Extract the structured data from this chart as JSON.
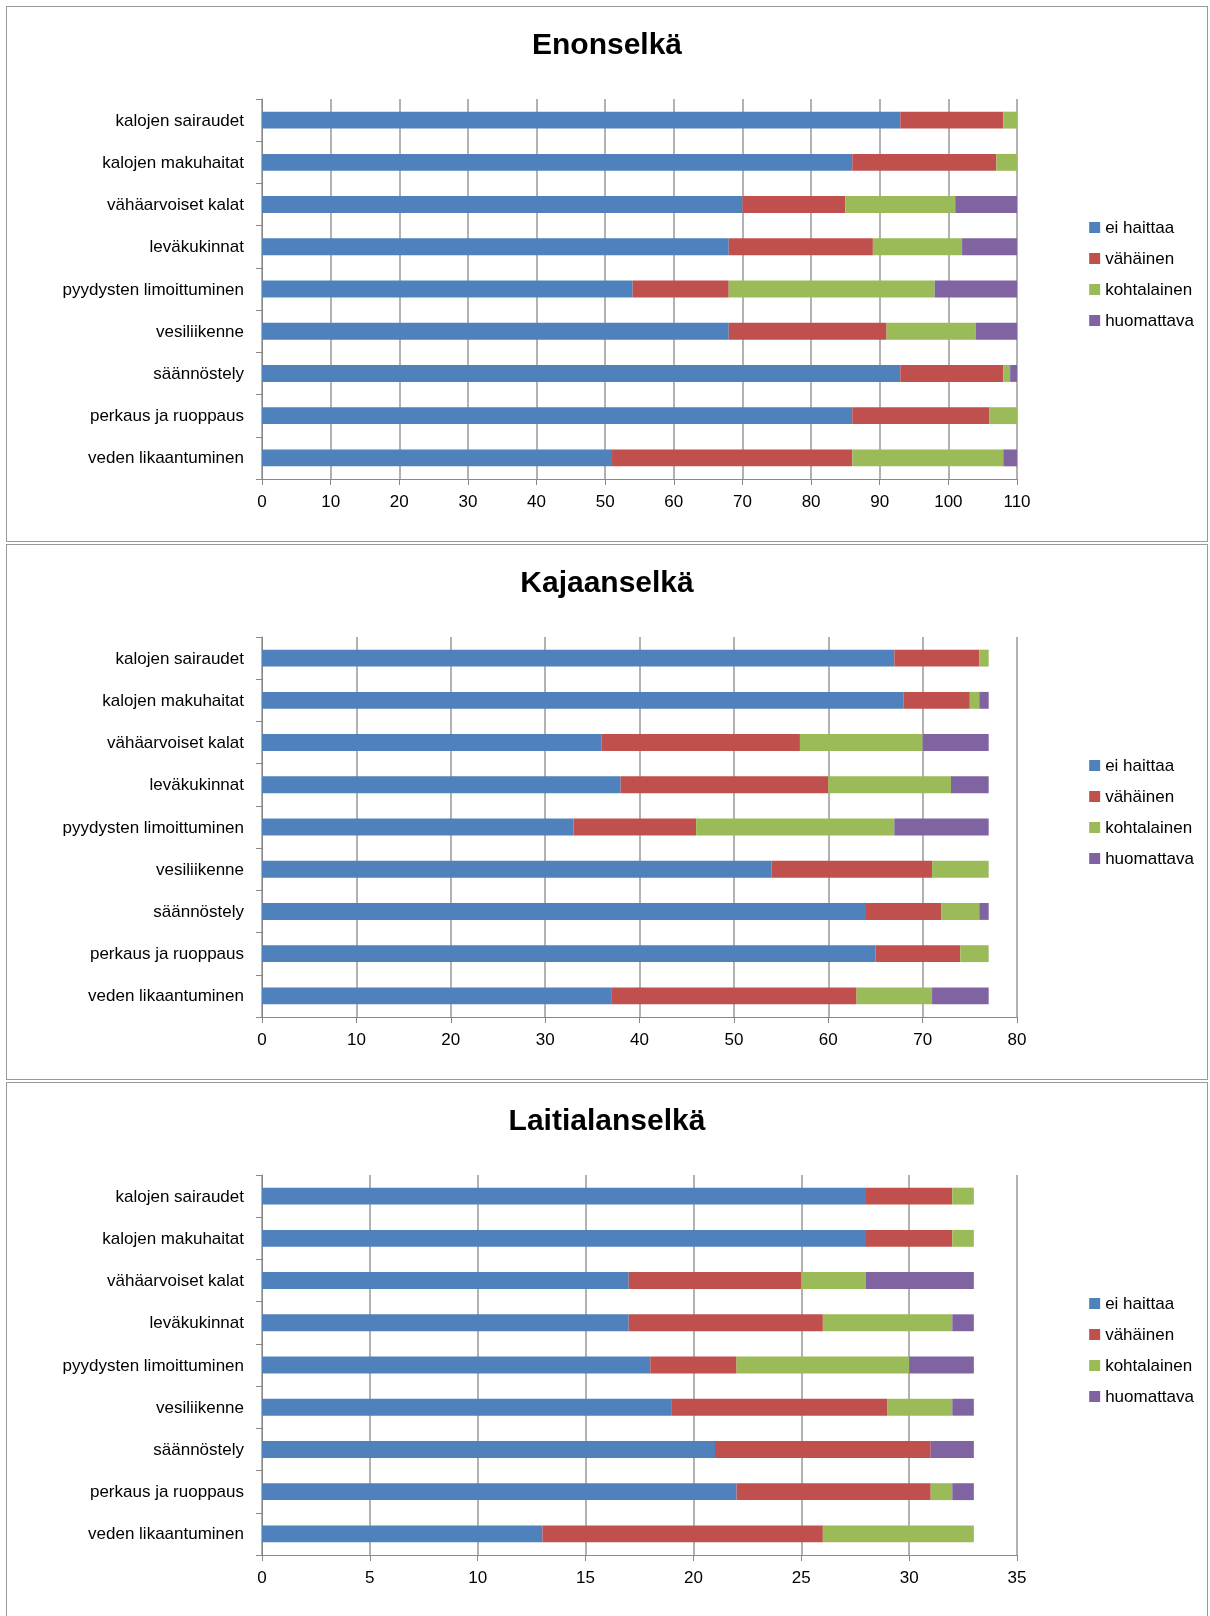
{
  "chart_data": [
    {
      "type": "bar",
      "title": "Enonselkä",
      "orientation": "horizontal",
      "stacked": true,
      "grid": "x",
      "legend": "right",
      "categories": [
        "kalojen sairaudet",
        "kalojen makuhaitat",
        "vähäarvoiset kalat",
        "leväkukinnat",
        "pyydysten limoittuminen",
        "vesiliikenne",
        "säännöstely",
        "perkaus ja ruoppaus",
        "veden likaantuminen"
      ],
      "xlim": [
        0,
        110
      ],
      "xticks": [
        0,
        10,
        20,
        30,
        40,
        50,
        60,
        70,
        80,
        90,
        100,
        110
      ],
      "series": [
        {
          "name": "ei haittaa",
          "color": "#4f81bd",
          "values": [
            93,
            86,
            70,
            68,
            54,
            68,
            93,
            86,
            51
          ]
        },
        {
          "name": "vähäinen",
          "color": "#c0504d",
          "values": [
            15,
            21,
            15,
            21,
            14,
            23,
            15,
            20,
            35
          ]
        },
        {
          "name": "kohtalainen",
          "color": "#9bbb59",
          "values": [
            2,
            3,
            16,
            13,
            30,
            13,
            1,
            4,
            22
          ]
        },
        {
          "name": "huomattava",
          "color": "#8064a2",
          "values": [
            0,
            0,
            9,
            8,
            12,
            6,
            1,
            0,
            2
          ]
        }
      ]
    },
    {
      "type": "bar",
      "title": "Kajaanselkä",
      "orientation": "horizontal",
      "stacked": true,
      "grid": "x",
      "legend": "right",
      "categories": [
        "kalojen sairaudet",
        "kalojen makuhaitat",
        "vähäarvoiset kalat",
        "leväkukinnat",
        "pyydysten limoittuminen",
        "vesiliikenne",
        "säännöstely",
        "perkaus ja ruoppaus",
        "veden likaantuminen"
      ],
      "xlim": [
        0,
        80
      ],
      "xticks": [
        0,
        10,
        20,
        30,
        40,
        50,
        60,
        70,
        80
      ],
      "series": [
        {
          "name": "ei haittaa",
          "color": "#4f81bd",
          "values": [
            67,
            68,
            36,
            38,
            33,
            54,
            64,
            65,
            37
          ]
        },
        {
          "name": "vähäinen",
          "color": "#c0504d",
          "values": [
            9,
            7,
            21,
            22,
            13,
            17,
            8,
            9,
            26
          ]
        },
        {
          "name": "kohtalainen",
          "color": "#9bbb59",
          "values": [
            1,
            1,
            13,
            13,
            21,
            6,
            4,
            3,
            8
          ]
        },
        {
          "name": "huomattava",
          "color": "#8064a2",
          "values": [
            0,
            1,
            7,
            4,
            10,
            0,
            1,
            0,
            6
          ]
        }
      ]
    },
    {
      "type": "bar",
      "title": "Laitialanselkä",
      "orientation": "horizontal",
      "stacked": true,
      "grid": "x",
      "legend": "right",
      "categories": [
        "kalojen sairaudet",
        "kalojen makuhaitat",
        "vähäarvoiset kalat",
        "leväkukinnat",
        "pyydysten limoittuminen",
        "vesiliikenne",
        "säännöstely",
        "perkaus ja ruoppaus",
        "veden likaantuminen"
      ],
      "xlim": [
        0,
        35
      ],
      "xticks": [
        0,
        5,
        10,
        15,
        20,
        25,
        30,
        35
      ],
      "series": [
        {
          "name": "ei haittaa",
          "color": "#4f81bd",
          "values": [
            28,
            28,
            17,
            17,
            18,
            19,
            21,
            22,
            13
          ]
        },
        {
          "name": "vähäinen",
          "color": "#c0504d",
          "values": [
            4,
            4,
            8,
            9,
            4,
            10,
            10,
            9,
            13
          ]
        },
        {
          "name": "kohtalainen",
          "color": "#9bbb59",
          "values": [
            1,
            1,
            3,
            6,
            8,
            3,
            0,
            1,
            7
          ]
        },
        {
          "name": "huomattava",
          "color": "#8064a2",
          "values": [
            0,
            0,
            5,
            1,
            3,
            1,
            2,
            1,
            0
          ]
        }
      ]
    }
  ]
}
